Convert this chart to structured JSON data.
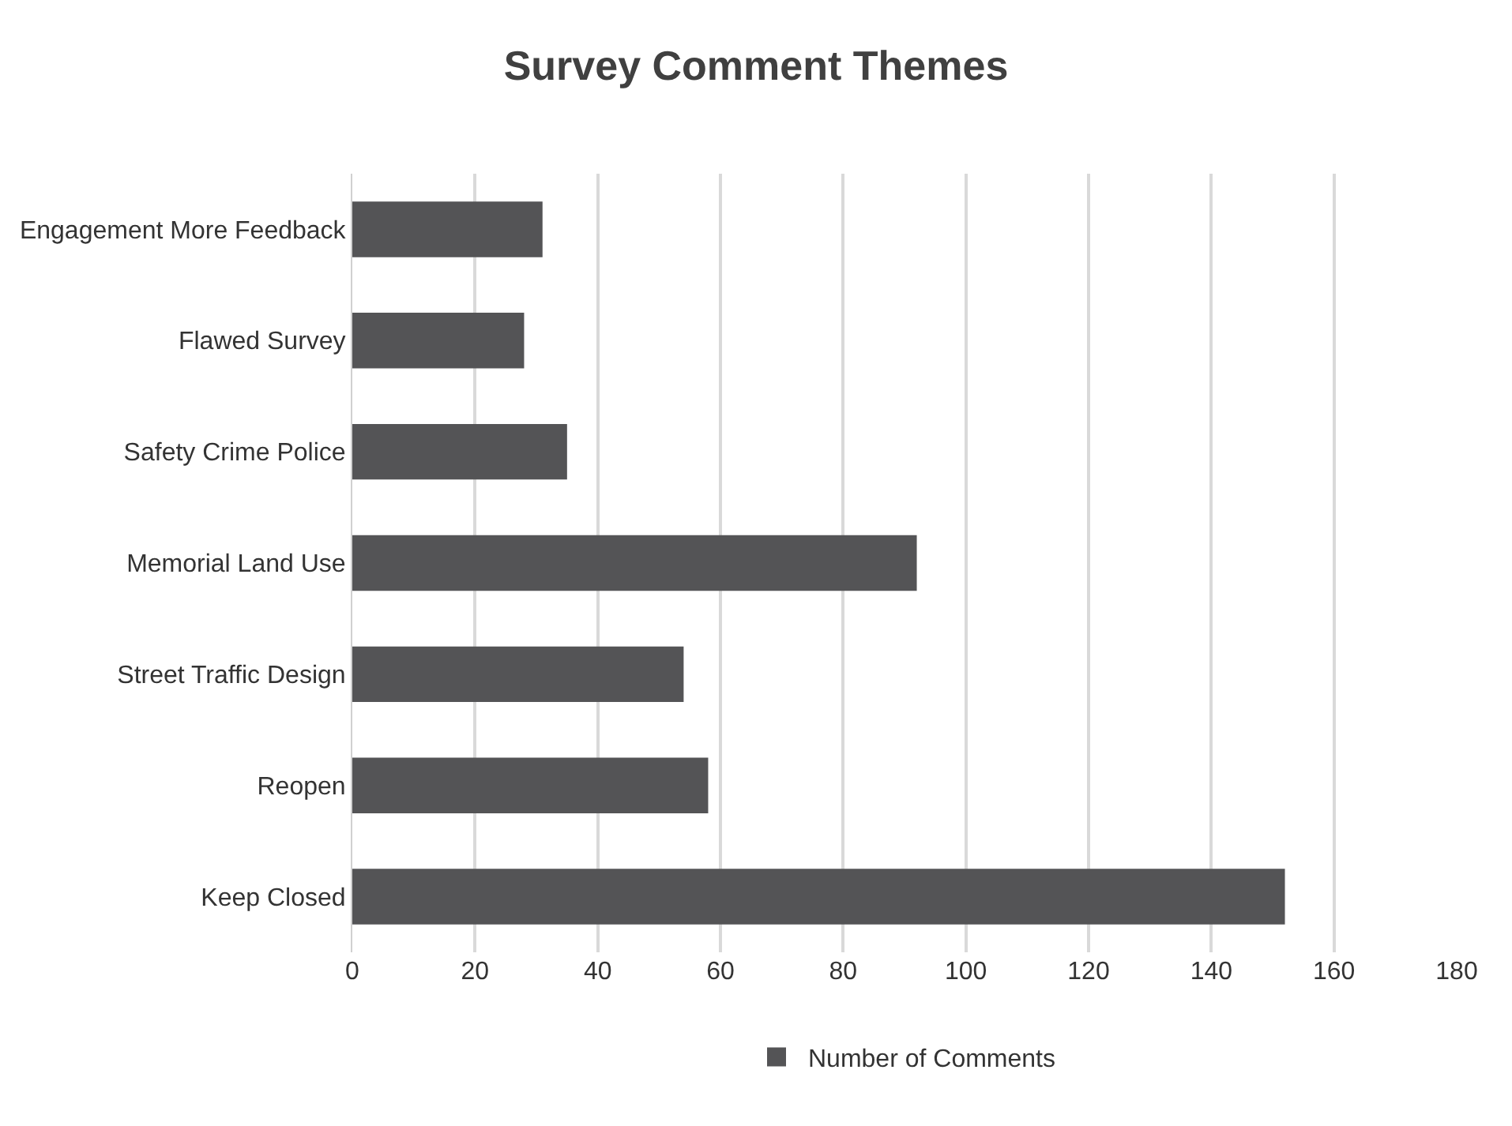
{
  "chart_data": {
    "type": "bar",
    "orientation": "horizontal",
    "title": "Survey Comment Themes",
    "categories": [
      "Engagement More Feedback",
      "Flawed Survey",
      "Safety Crime Police",
      "Memorial Land Use",
      "Street Traffic Design",
      "Reopen",
      "Keep Closed"
    ],
    "series": [
      {
        "name": "Number of Comments",
        "color": "#545456",
        "values": [
          31,
          28,
          35,
          92,
          54,
          58,
          152
        ]
      }
    ],
    "xlim": [
      0,
      180
    ],
    "xticks": [
      0,
      20,
      40,
      60,
      80,
      100,
      120,
      140,
      160,
      180
    ],
    "grid": "x",
    "legend": "bottom"
  }
}
